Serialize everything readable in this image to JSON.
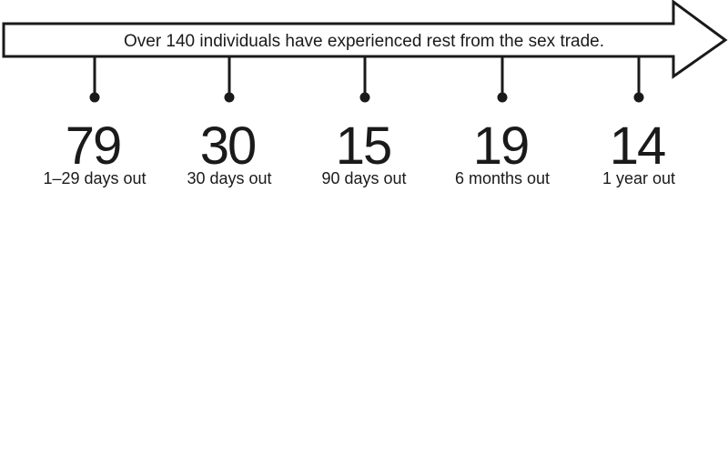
{
  "arrow": {
    "caption": "Over 140 individuals have experienced rest from the sex trade."
  },
  "milestones": [
    {
      "value": "79",
      "label": "1–29 days out"
    },
    {
      "value": "30",
      "label": "30 days out"
    },
    {
      "value": "15",
      "label": "90 days out"
    },
    {
      "value": "19",
      "label": "6 months out"
    },
    {
      "value": "14",
      "label": "1 year out"
    }
  ],
  "colors": {
    "ink": "#1a1a1a",
    "background": "#ffffff"
  }
}
